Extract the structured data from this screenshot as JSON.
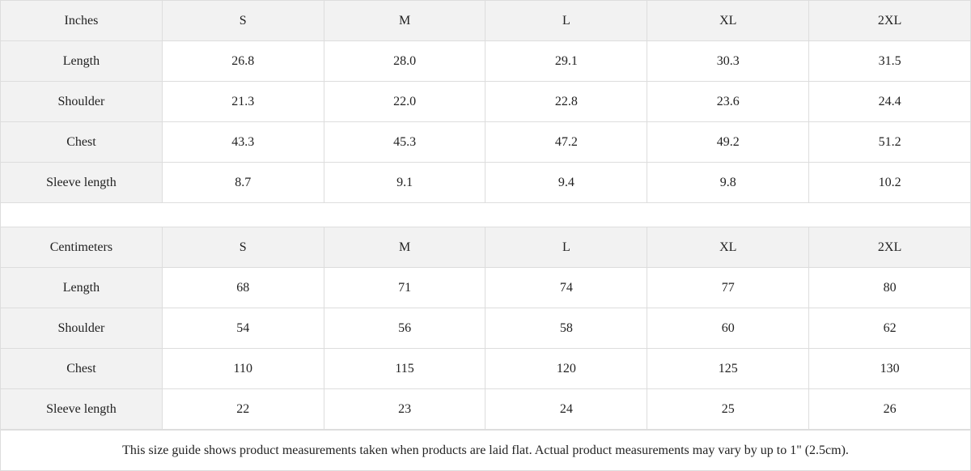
{
  "tables": [
    {
      "unit": "Inches",
      "sizes": [
        "S",
        "M",
        "L",
        "XL",
        "2XL"
      ],
      "rows": [
        {
          "label": "Length",
          "values": [
            "26.8",
            "28.0",
            "29.1",
            "30.3",
            "31.5"
          ]
        },
        {
          "label": "Shoulder",
          "values": [
            "21.3",
            "22.0",
            "22.8",
            "23.6",
            "24.4"
          ]
        },
        {
          "label": "Chest",
          "values": [
            "43.3",
            "45.3",
            "47.2",
            "49.2",
            "51.2"
          ]
        },
        {
          "label": "Sleeve length",
          "values": [
            "8.7",
            "9.1",
            "9.4",
            "9.8",
            "10.2"
          ]
        }
      ]
    },
    {
      "unit": "Centimeters",
      "sizes": [
        "S",
        "M",
        "L",
        "XL",
        "2XL"
      ],
      "rows": [
        {
          "label": "Length",
          "values": [
            "68",
            "71",
            "74",
            "77",
            "80"
          ]
        },
        {
          "label": "Shoulder",
          "values": [
            "54",
            "56",
            "58",
            "60",
            "62"
          ]
        },
        {
          "label": "Chest",
          "values": [
            "110",
            "115",
            "120",
            "125",
            "130"
          ]
        },
        {
          "label": "Sleeve length",
          "values": [
            "22",
            "23",
            "24",
            "25",
            "26"
          ]
        }
      ]
    }
  ],
  "footnote": "This size guide shows product measurements taken when products are laid flat.  Actual product measurements may vary by up to 1\" (2.5cm).",
  "colors": {
    "header_bg": "#f2f2f2",
    "border": "#dddddd"
  }
}
